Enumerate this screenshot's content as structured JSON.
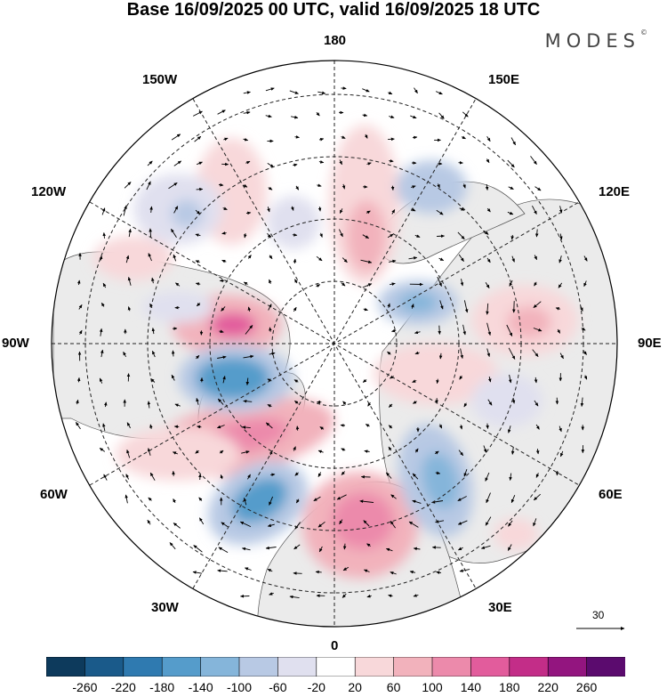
{
  "title": "Base 16/09/2025 00 UTC, valid 16/09/2025 18 UTC",
  "brand": "MODES",
  "brand_mark": "©",
  "longitude_labels": {
    "top": "180",
    "bottom": "0",
    "left": "90W",
    "right": "90E",
    "upper_left_30": "150W",
    "upper_left_60": "120W",
    "upper_right_30": "150E",
    "upper_right_60": "120E",
    "lower_left_60": "60W",
    "lower_left_30": "30W",
    "lower_right_60": "60E",
    "lower_right_30": "30E"
  },
  "reference_vector": {
    "label": "30"
  },
  "colorbar": {
    "colors": [
      "#0d3a5c",
      "#1a5a8a",
      "#2f7ab0",
      "#559ccb",
      "#85b5da",
      "#b8c9e4",
      "#e0e0ef",
      "#ffffff",
      "#f8d8da",
      "#f2b2bc",
      "#ec8aab",
      "#e25c9c",
      "#c32d88",
      "#93157f",
      "#5b0b6e"
    ],
    "ticks": [
      "-260",
      "-220",
      "-180",
      "-140",
      "-100",
      "-60",
      "-20",
      "20",
      "60",
      "100",
      "140",
      "180",
      "220",
      "260"
    ]
  }
}
